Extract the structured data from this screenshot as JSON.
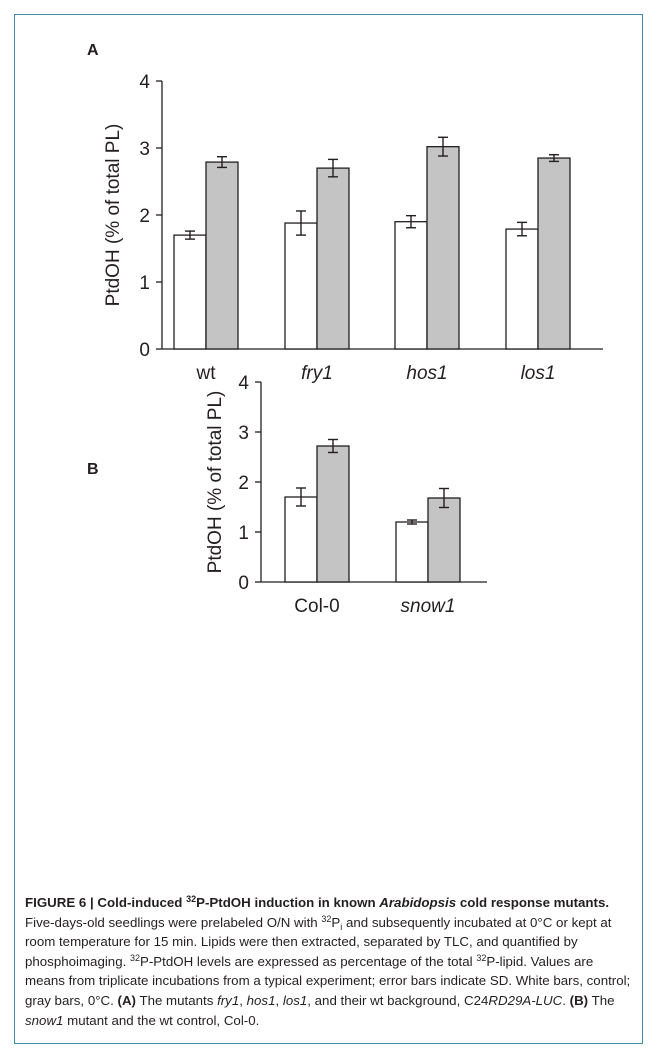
{
  "figure": {
    "panel_a_label": "A",
    "panel_b_label": "B",
    "colors": {
      "control": "#ffffff",
      "cold": "#c4c4c4",
      "frame": "#3c8fa3"
    },
    "caption": {
      "title_prefix": "FIGURE 6 | Cold-induced ",
      "title_sup": "32",
      "title_mid": "P-PtdOH induction in known ",
      "title_italic": "Arabidopsis",
      "title_end": " cold response mutants.",
      "t1": " Five-days-old seedlings were prelabeled O/N with ",
      "sup1": "32",
      "t1b": "P",
      "sub1": "i",
      "t2": " and subsequently incubated at 0°C or kept at room temperature for 15 min. Lipids were then extracted, separated by TLC, and quantified by phosphoimaging. ",
      "sup2": "32",
      "t3": "P-PtdOH levels are expressed as percentage of the total ",
      "sup3": "32",
      "t4": "P-lipid. Values are means from triplicate incubations from a typical experiment; error bars indicate SD. White bars, control; gray bars, 0°C. ",
      "a_label": "(A)",
      "t5": " The mutants ",
      "m1": "fry1",
      "c1": ", ",
      "m2": "hos1",
      "c2": ", ",
      "m3": "los1",
      "t6": ", and their wt background, C24",
      "m4": "RD29A-LUC",
      "t7": ". ",
      "b_label": "(B)",
      "t8": " The ",
      "m5": "snow1",
      "t9": " mutant and the wt control, Col-0."
    }
  },
  "chart_data": [
    {
      "type": "bar",
      "panel": "A",
      "ylabel": "PtdOH (% of total PL)",
      "ylim": [
        0,
        4
      ],
      "yticks": [
        "0",
        "1",
        "2",
        "3",
        "4"
      ],
      "categories": [
        "wt",
        "fry1",
        "hos1",
        "los1"
      ],
      "category_italic": [
        false,
        true,
        true,
        true
      ],
      "series": [
        {
          "values": [
            1.7,
            1.88,
            1.9,
            1.79
          ],
          "errors": [
            0.06,
            0.18,
            0.09,
            0.1
          ],
          "color": "#ffffff"
        },
        {
          "values": [
            2.79,
            2.7,
            3.02,
            2.85
          ],
          "errors": [
            0.08,
            0.13,
            0.14,
            0.05
          ],
          "color": "#c4c4c4"
        }
      ]
    },
    {
      "type": "bar",
      "panel": "B",
      "ylabel": "PtdOH (% of total PL)",
      "ylim": [
        0,
        4
      ],
      "yticks": [
        "0",
        "1",
        "2",
        "3",
        "4"
      ],
      "categories": [
        "Col-0",
        "snow1"
      ],
      "category_italic": [
        false,
        true
      ],
      "series": [
        {
          "values": [
            1.7,
            1.2
          ],
          "errors": [
            0.18,
            0.04
          ],
          "color": "#ffffff"
        },
        {
          "values": [
            2.72,
            1.68
          ],
          "errors": [
            0.13,
            0.19
          ],
          "color": "#c4c4c4"
        }
      ]
    }
  ]
}
